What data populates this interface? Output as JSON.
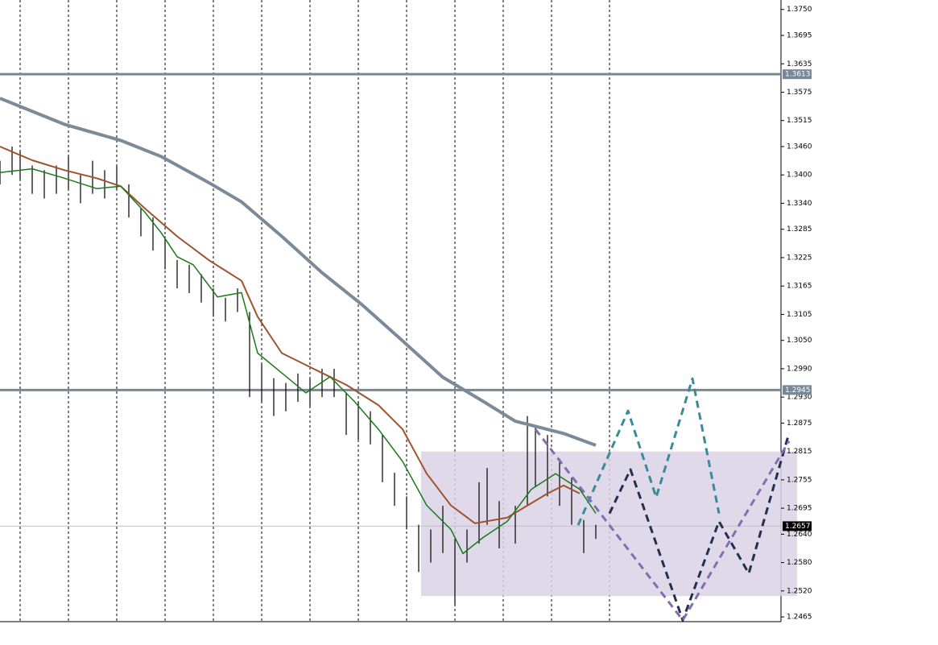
{
  "chart_data": {
    "type": "line",
    "ylim": [
      1.2455,
      1.377
    ],
    "xlim": [
      0,
      970
    ],
    "yticks": [
      {
        "value": 1.375,
        "label": "1.3750"
      },
      1.3695,
      1.3635,
      1.3575,
      1.3515,
      {
        "value": 1.346,
        "label": "1.3460"
      },
      {
        "value": 1.34,
        "label": "1.3400"
      },
      {
        "value": 1.334,
        "label": "1.3340"
      },
      1.3285,
      1.3225,
      1.3165,
      1.3105,
      {
        "value": 1.305,
        "label": "1.3050"
      },
      {
        "value": 1.299,
        "label": "1.2990"
      },
      {
        "value": 1.293,
        "label": "1.2930"
      },
      1.2875,
      1.2815,
      1.2755,
      1.2695,
      {
        "value": 1.264,
        "label": "1.2640"
      },
      {
        "value": 1.258,
        "label": "1.2580"
      },
      {
        "value": 1.252,
        "label": "1.2520"
      },
      1.2465
    ],
    "levels": [
      {
        "value": 1.3613,
        "color": "#778899",
        "label_color": "#778899"
      },
      {
        "value": 1.2945,
        "color": "#778899",
        "label_color": "#778899"
      },
      {
        "value": 1.2657,
        "color": "#c0c0c0",
        "label_color": "#000000"
      }
    ],
    "zone": {
      "x": [
        523,
        990
      ],
      "y": [
        1.2509,
        1.2815
      ],
      "color": "#d9d2e6"
    },
    "bars": {
      "color": "#000000",
      "x": [
        0,
        15,
        25,
        40,
        55,
        70,
        85,
        100,
        115,
        130,
        145,
        160,
        175,
        190,
        205,
        220,
        235,
        250,
        265,
        280,
        295,
        310,
        325,
        340,
        355,
        370,
        385,
        400,
        415,
        430,
        445,
        460,
        475,
        490,
        505,
        520,
        535,
        550,
        565,
        580,
        595,
        605,
        620,
        640,
        655,
        665,
        680,
        695,
        710,
        725,
        740
      ],
      "high": [
        1.343,
        1.346,
        1.345,
        1.342,
        1.341,
        1.342,
        1.344,
        1.34,
        1.343,
        1.341,
        1.342,
        1.338,
        1.333,
        1.331,
        1.327,
        1.322,
        1.321,
        1.319,
        1.316,
        1.314,
        1.316,
        1.311,
        1.3,
        1.297,
        1.296,
        1.298,
        1.297,
        1.299,
        1.299,
        1.294,
        1.292,
        1.29,
        1.285,
        1.277,
        1.272,
        1.266,
        1.265,
        1.27,
        1.263,
        1.265,
        1.275,
        1.278,
        1.271,
        1.27,
        1.289,
        1.287,
        1.285,
        1.28,
        1.276,
        1.267,
        1.266
      ],
      "low": [
        1.338,
        1.34,
        1.339,
        1.336,
        1.335,
        1.336,
        1.337,
        1.334,
        1.336,
        1.335,
        1.337,
        1.331,
        1.327,
        1.324,
        1.32,
        1.316,
        1.315,
        1.313,
        1.31,
        1.309,
        1.311,
        1.293,
        1.292,
        1.289,
        1.29,
        1.292,
        1.291,
        1.293,
        1.293,
        1.285,
        1.284,
        1.283,
        1.275,
        1.27,
        1.265,
        1.256,
        1.258,
        1.26,
        1.249,
        1.258,
        1.262,
        1.266,
        1.261,
        1.262,
        1.27,
        1.274,
        1.272,
        1.27,
        1.266,
        1.26,
        1.263
      ]
    },
    "series": [
      {
        "color": "#7a8a98",
        "width": 4,
        "dash": false,
        "x": [
          0,
          80,
          150,
          200,
          260,
          300,
          350,
          400,
          450,
          500,
          550,
          600,
          640,
          700,
          740
        ],
        "values": [
          1.3562,
          1.3507,
          1.3473,
          1.3439,
          1.3383,
          1.3343,
          1.327,
          1.3193,
          1.3125,
          1.3049,
          1.2972,
          1.2921,
          1.2879,
          1.2853,
          1.2828
        ]
      },
      {
        "color": "#a0522d",
        "width": 2,
        "dash": false,
        "x": [
          0,
          40,
          80,
          120,
          150,
          180,
          220,
          260,
          300,
          320,
          350,
          400,
          430,
          470,
          500,
          530,
          560,
          590,
          630,
          680,
          700,
          720
        ],
        "values": [
          1.346,
          1.3431,
          1.341,
          1.3393,
          1.3376,
          1.3329,
          1.327,
          1.3219,
          1.3176,
          1.31,
          1.3023,
          1.2981,
          1.2956,
          1.2913,
          1.2862,
          1.2768,
          1.2701,
          1.2663,
          1.2675,
          1.2726,
          1.2743,
          1.2726
        ]
      },
      {
        "color": "#1a7a1a",
        "width": 1.5,
        "dash": false,
        "x": [
          0,
          40,
          80,
          120,
          150,
          180,
          200,
          220,
          240,
          270,
          300,
          320,
          350,
          380,
          410,
          440,
          470,
          500,
          530,
          560,
          575,
          600,
          630,
          660,
          690,
          720,
          740
        ],
        "values": [
          1.3405,
          1.3413,
          1.3393,
          1.3371,
          1.3376,
          1.3321,
          1.3278,
          1.3227,
          1.321,
          1.3142,
          1.3151,
          1.3023,
          1.2981,
          1.2939,
          1.2973,
          1.2921,
          1.2862,
          1.2794,
          1.2701,
          1.265,
          1.2599,
          1.2633,
          1.2667,
          1.2735,
          1.2768,
          1.2735,
          1.2684
        ]
      },
      {
        "color": "#3a8a9a",
        "width": 3,
        "dash": true,
        "x": [
          718,
          780,
          815,
          860,
          893
        ],
        "values": [
          1.2659,
          1.2901,
          1.2718,
          1.2969,
          1.2684
        ]
      },
      {
        "color": "#1f3050",
        "width": 3,
        "dash": true,
        "x": [
          757,
          783,
          848,
          893,
          930,
          980
        ],
        "values": [
          1.2684,
          1.2777,
          1.2458,
          1.2667,
          1.2557,
          1.2854
        ]
      },
      {
        "color": "#8070b0",
        "width": 3,
        "dash": true,
        "x": [
          665,
          848,
          980
        ],
        "values": [
          1.2862,
          1.2458,
          1.2837
        ]
      }
    ]
  }
}
